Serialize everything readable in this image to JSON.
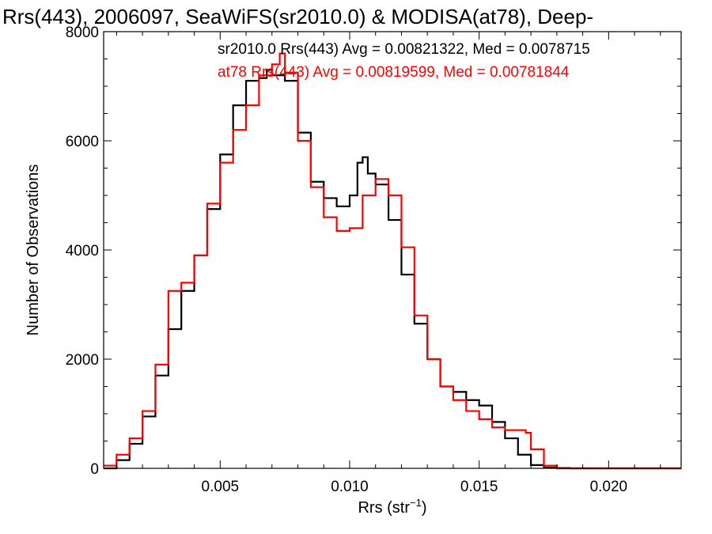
{
  "chart_data": {
    "type": "line",
    "title": "Rrs(443), 2006097, SeaWiFS(sr2010.0) & MODISA(at78), Deep-",
    "xlabel_base": "Rrs (str",
    "xlabel_sup": "−1",
    "xlabel_close": ")",
    "ylabel": "Number of Observations",
    "xlim": [
      0.0005,
      0.0228
    ],
    "ylim": [
      0,
      8000
    ],
    "xticks": [
      0.005,
      0.01,
      0.015,
      0.02
    ],
    "xtick_labels": [
      "0.005",
      "0.010",
      "0.015",
      "0.020"
    ],
    "yticks": [
      0,
      2000,
      4000,
      6000,
      8000
    ],
    "ytick_labels": [
      "0",
      "2000",
      "4000",
      "6000",
      "8000"
    ],
    "grid": false,
    "legend_placement": "top-right",
    "series": [
      {
        "name": "sr2010.0 Rrs(443) Avg = 0.00821322, Med = 0.0078715",
        "color": "#000000",
        "x": [
          0.0005,
          0.001,
          0.0015,
          0.002,
          0.0025,
          0.003,
          0.0035,
          0.004,
          0.0045,
          0.005,
          0.0055,
          0.006,
          0.0065,
          0.0068,
          0.007,
          0.0075,
          0.008,
          0.0085,
          0.009,
          0.0095,
          0.01,
          0.0103,
          0.0105,
          0.0107,
          0.011,
          0.0115,
          0.012,
          0.0125,
          0.013,
          0.0135,
          0.014,
          0.0145,
          0.015,
          0.0155,
          0.016,
          0.0165,
          0.017,
          0.0175,
          0.018,
          0.0185,
          0.019,
          0.02,
          0.0228
        ],
        "y": [
          0,
          150,
          450,
          950,
          1700,
          2550,
          3250,
          3900,
          4750,
          5750,
          6650,
          7100,
          7150,
          7300,
          7200,
          7100,
          6150,
          5250,
          4950,
          4800,
          5000,
          5600,
          5700,
          5400,
          5200,
          4550,
          3550,
          2650,
          2000,
          1500,
          1400,
          1250,
          1150,
          850,
          550,
          250,
          60,
          15,
          5,
          0,
          0,
          0,
          0
        ]
      },
      {
        "name": "at78 Rrs(443) Avg = 0.00819599, Med = 0.00781844",
        "color": "#ff0000",
        "x": [
          0.0005,
          0.001,
          0.0015,
          0.002,
          0.0025,
          0.003,
          0.0035,
          0.004,
          0.0045,
          0.005,
          0.0055,
          0.006,
          0.0065,
          0.007,
          0.0073,
          0.0075,
          0.008,
          0.0085,
          0.009,
          0.0095,
          0.01,
          0.0105,
          0.011,
          0.0115,
          0.012,
          0.0125,
          0.013,
          0.0135,
          0.014,
          0.0145,
          0.015,
          0.0155,
          0.016,
          0.0165,
          0.0168,
          0.017,
          0.0175,
          0.018,
          0.019,
          0.02,
          0.0228
        ],
        "y": [
          50,
          250,
          550,
          1050,
          1900,
          3250,
          3400,
          3900,
          4850,
          5600,
          6200,
          6650,
          7200,
          7400,
          7600,
          7250,
          6000,
          5150,
          4600,
          4350,
          4400,
          5000,
          5300,
          5000,
          4050,
          2800,
          2000,
          1500,
          1250,
          1050,
          900,
          750,
          700,
          700,
          650,
          350,
          50,
          0,
          0,
          0,
          0
        ]
      }
    ]
  }
}
